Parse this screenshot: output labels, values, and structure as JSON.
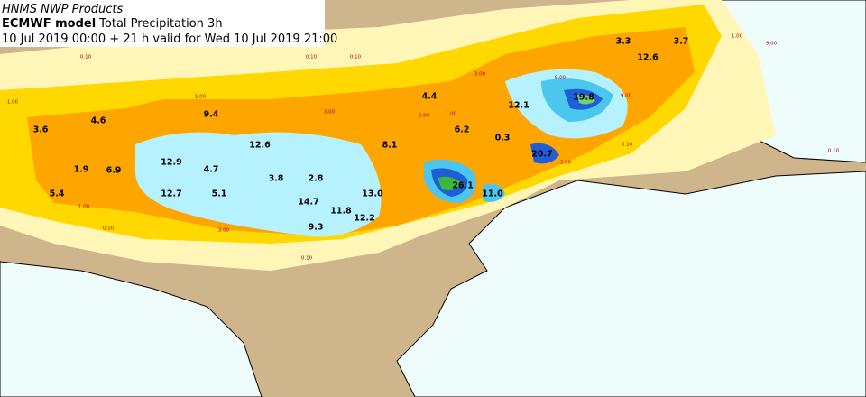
{
  "header": {
    "source": "HNMS NWP Products",
    "model": "ECMWF model",
    "product": "Total Precipitation 3h",
    "valid": "10 Jul 2019 00:00 + 21 h valid for Wed 10 Jul 2019 21:00"
  },
  "max_labels": [
    "3.3",
    "3.7",
    "12.6",
    "4.4",
    "19.8",
    "12.1",
    "9.4",
    "4.6",
    "3.6",
    "6.2",
    "0.3",
    "12.6",
    "8.1",
    "20.7",
    "12.9",
    "4.7",
    "1.9",
    "6.9",
    "2.8",
    "3.8",
    "26.1",
    "12.7",
    "5.1",
    "5.4",
    "13.0",
    "11.0",
    "14.7",
    "11.8",
    "12.2",
    "9.3"
  ],
  "contour_labels": [
    "0.10",
    "0.10",
    "0.10",
    "1.00",
    "1.00",
    "3.00",
    "1.00",
    "3.00",
    "9.00",
    "1.00",
    "9.00",
    "0.10",
    "0.10",
    "0.10",
    "1.00",
    "3.00",
    "0.10",
    "3.00",
    "9.00",
    "3.00"
  ]
}
